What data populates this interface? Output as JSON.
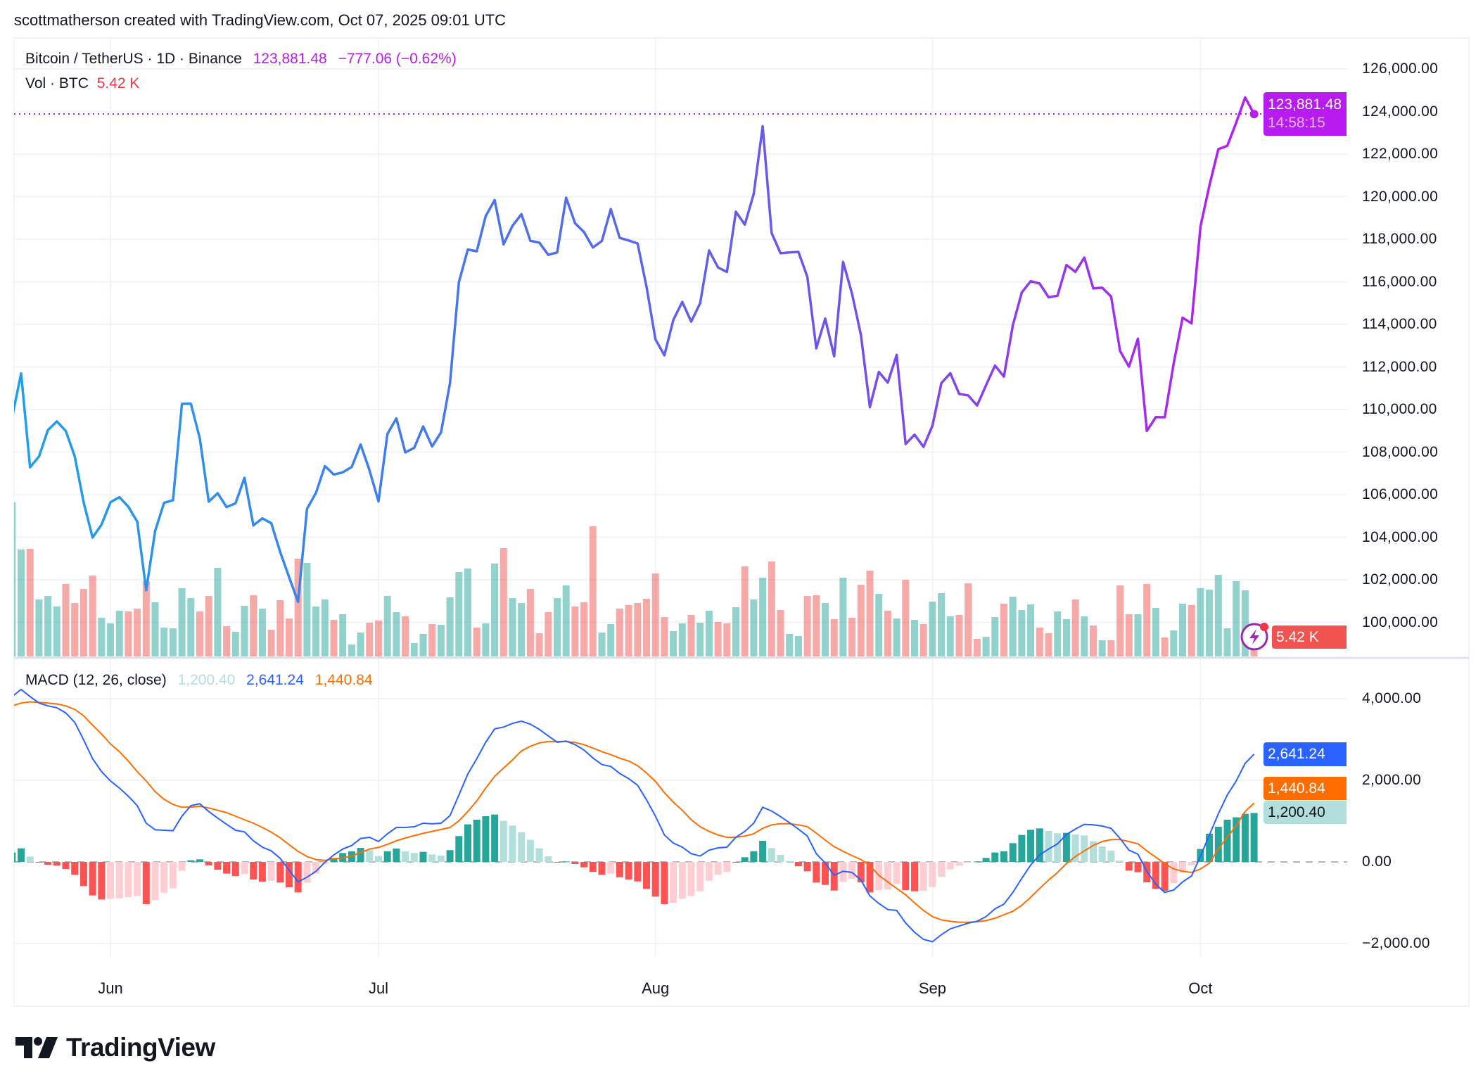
{
  "header": {
    "credit": "scottmatherson created with TradingView.com, Oct 07, 2025 09:01 UTC"
  },
  "legend": {
    "symbol": "Bitcoin / TetherUS · 1D · Binance",
    "price": "123,881.48",
    "change": "−777.06 (−0.62%)",
    "volume_label": "Vol · BTC",
    "volume_value": "5.42 K"
  },
  "macd_legend": {
    "title": "MACD (12, 26, close)",
    "histogram": "1,200.40",
    "macd": "2,641.24",
    "signal": "1,440.84"
  },
  "price_tag": {
    "price": "123,881.48",
    "countdown": "14:58:15"
  },
  "volume_tag": "5.42 K",
  "macd_tags": {
    "macd": "2,641.24",
    "signal": "1,440.84",
    "histogram": "1,200.40"
  },
  "logo": {
    "text": "TradingView"
  },
  "colors": {
    "price_line_start": "#1ea0ea",
    "price_line_end": "#b71cf2",
    "accent_purple": "#b81bf0",
    "volume_up": "#26a69a",
    "volume_down": "#ef5350",
    "macd_line": "#2962ff",
    "signal_line": "#ff6d00",
    "hist_up_strong": "#26a69a",
    "hist_up_weak": "#b2dfdb",
    "hist_down_strong": "#ff5252",
    "hist_down_weak": "#ffcdd2",
    "volume_tag": "#f05350"
  },
  "chart_data": [
    {
      "type": "line",
      "title": "Bitcoin / TetherUS · 1D · Binance",
      "x_start": "2025-05-21",
      "x_end": "2025-10-07",
      "x_interval": "1D",
      "xticks": [
        "Jun",
        "Jul",
        "Aug",
        "Sep",
        "Oct"
      ],
      "yticks": [
        "126,000.00",
        "124,000.00",
        "122,000.00",
        "120,000.00",
        "118,000.00",
        "116,000.00",
        "114,000.00",
        "112,000.00",
        "110,000.00",
        "108,000.00",
        "106,000.00",
        "104,000.00",
        "102,000.00",
        "100,000.00"
      ],
      "ylim": [
        100000,
        126000
      ],
      "grid": true,
      "series": [
        {
          "name": "Bitcoin / TetherUS",
          "values": [
            109643,
            111696,
            107287,
            107791,
            109035,
            109440,
            108995,
            107802,
            105641,
            103985,
            104591,
            105642,
            105882,
            105432,
            104732,
            101509,
            104289,
            105616,
            105735,
            110263,
            110275,
            108645,
            105671,
            106067,
            105414,
            105595,
            106795,
            104551,
            104886,
            104658,
            103298,
            102120,
            100963,
            105333,
            106083,
            107341,
            106947,
            107047,
            107296,
            108356,
            107135,
            105681,
            108849,
            109584,
            107985,
            108198,
            109204,
            108262,
            108922,
            111233,
            115987,
            117516,
            117435,
            119086,
            119842,
            117759,
            118630,
            119177,
            117924,
            117840,
            117265,
            117380,
            119955,
            118755,
            118340,
            117614,
            117919,
            119415,
            118062,
            117939,
            117800,
            115764,
            113297,
            112546,
            114208,
            115055,
            114129,
            114992,
            117472,
            116674,
            116462,
            119294,
            118686,
            120134,
            123306,
            118295,
            117342,
            117380,
            117405,
            116227,
            112872,
            114271,
            112500,
            116935,
            115438,
            113493,
            110111,
            111764,
            111262,
            112567,
            108377,
            108816,
            108246,
            109237,
            111240,
            111706,
            110731,
            110660,
            110187,
            111137,
            112065,
            111546,
            113960,
            115499,
            116030,
            115918,
            115268,
            115349,
            116788,
            116468,
            117137,
            115688,
            115721,
            115306,
            112748,
            112014,
            113328,
            108994,
            109643,
            109635,
            112163,
            114311,
            114048,
            118594,
            120530,
            122232,
            122391,
            123482,
            124658,
            123881.48
          ]
        }
      ],
      "last_value": 123881.48
    },
    {
      "type": "bar",
      "title": "Vol · BTC",
      "unit": "K",
      "series": [
        {
          "name": "Vol · BTC",
          "values": [
            43.8,
            30.4,
            30.6,
            16.2,
            17.2,
            14.2,
            20.6,
            15.2,
            19.2,
            23.0,
            11.0,
            9.4,
            13.0,
            12.8,
            13.6,
            21.4,
            15.4,
            8.2,
            8.0,
            19.4,
            16.6,
            12.8,
            17.2,
            25.2,
            8.6,
            7.0,
            14.4,
            17.4,
            13.6,
            7.6,
            16.0,
            10.8,
            27.8,
            26.6,
            14.2,
            16.2,
            10.4,
            12.0,
            3.4,
            6.8,
            9.6,
            10.2,
            17.2,
            12.6,
            11.4,
            3.8,
            6.4,
            9.2,
            9.0,
            16.8,
            24.0,
            25.0,
            8.2,
            9.4,
            26.4,
            30.8,
            16.6,
            15.2,
            19.2,
            6.6,
            12.6,
            16.6,
            20.2,
            14.2,
            15.4,
            37.0,
            6.8,
            9.2,
            13.6,
            14.6,
            15.2,
            16.4,
            23.6,
            11.2,
            7.2,
            9.4,
            11.8,
            9.6,
            13.0,
            9.8,
            9.4,
            14.0,
            25.6,
            16.2,
            22.4,
            27.0,
            13.2,
            6.4,
            5.8,
            17.2,
            17.4,
            15.2,
            10.6,
            22.4,
            11.0,
            20.4,
            24.4,
            17.8,
            13.0,
            10.8,
            21.8,
            10.4,
            9.2,
            15.6,
            18.0,
            11.4,
            11.8,
            20.8,
            5.0,
            5.6,
            11.2,
            15.0,
            17.0,
            13.2,
            14.8,
            8.2,
            6.6,
            12.8,
            10.6,
            16.2,
            11.4,
            8.8,
            4.6,
            4.6,
            20.2,
            12.0,
            12.0,
            20.6,
            13.8,
            5.4,
            7.4,
            15.0,
            14.6,
            19.4,
            19.0,
            23.2,
            8.0,
            21.4,
            18.8,
            5.42
          ]
        }
      ]
    },
    {
      "type": "line",
      "title": "MACD (12, 26, close)",
      "yticks": [
        "4,000.00",
        "2,000.00",
        "0.00",
        "−2,000.00"
      ],
      "ylim": [
        -2300,
        4300
      ],
      "grid": true,
      "series": [
        {
          "name": "MACD",
          "values": [
            4054,
            4226,
            4054,
            3893,
            3824,
            3778,
            3651,
            3421,
            2990,
            2530,
            2214,
            1984,
            1811,
            1610,
            1380,
            949,
            788,
            776,
            765,
            1121,
            1380,
            1426,
            1236,
            1075,
            920,
            776,
            736,
            518,
            362,
            270,
            86,
            -201,
            -489,
            -374,
            -230,
            -10,
            172,
            316,
            402,
            575,
            604,
            500,
            690,
            845,
            845,
            862,
            949,
            932,
            949,
            1133,
            1639,
            2156,
            2530,
            2933,
            3260,
            3306,
            3393,
            3450,
            3375,
            3249,
            3088,
            2933,
            2961,
            2875,
            2743,
            2547,
            2386,
            2340,
            2168,
            2041,
            1880,
            1520,
            1121,
            661,
            460,
            362,
            201,
            144,
            288,
            345,
            362,
            604,
            748,
            949,
            1340,
            1248,
            1110,
            960,
            805,
            633,
            201,
            -29,
            -328,
            -230,
            -259,
            -443,
            -834,
            -1018,
            -1167,
            -1190,
            -1495,
            -1725,
            -1898,
            -1955,
            -1783,
            -1639,
            -1570,
            -1500,
            -1455,
            -1340,
            -1150,
            -1035,
            -748,
            -403,
            -75,
            172,
            316,
            443,
            673,
            805,
            920,
            909,
            880,
            822,
            575,
            288,
            190,
            -230,
            -546,
            -748,
            -690,
            -489,
            -345,
            144,
            661,
            1179,
            1639,
            1984,
            2415,
            2641.24
          ]
        },
        {
          "name": "Signal",
          "values": [
            3824,
            3893,
            3922,
            3910,
            3893,
            3870,
            3824,
            3738,
            3582,
            3352,
            3134,
            2892,
            2703,
            2473,
            2214,
            1984,
            1725,
            1535,
            1409,
            1340,
            1340,
            1363,
            1322,
            1265,
            1207,
            1121,
            1035,
            949,
            845,
            730,
            592,
            420,
            259,
            132,
            58,
            40,
            75,
            98,
            144,
            230,
            316,
            356,
            431,
            518,
            586,
            644,
            702,
            748,
            794,
            845,
            1006,
            1236,
            1495,
            1811,
            2099,
            2300,
            2501,
            2720,
            2835,
            2915,
            2950,
            2950,
            2950,
            2927,
            2875,
            2789,
            2703,
            2628,
            2542,
            2473,
            2358,
            2180,
            1972,
            1696,
            1466,
            1265,
            1035,
            863,
            748,
            661,
            604,
            604,
            633,
            690,
            822,
            909,
            937,
            937,
            909,
            863,
            707,
            535,
            374,
            259,
            155,
            58,
            -86,
            -328,
            -489,
            -650,
            -805,
            -1006,
            -1190,
            -1340,
            -1420,
            -1455,
            -1478,
            -1478,
            -1466,
            -1438,
            -1380,
            -1294,
            -1208,
            -1064,
            -863,
            -650,
            -443,
            -259,
            -40,
            132,
            270,
            403,
            500,
            546,
            546,
            500,
            443,
            270,
            115,
            -40,
            -173,
            -230,
            -259,
            -173,
            -29,
            316,
            604,
            891,
            1236,
            1440.84
          ]
        }
      ],
      "histogram_last": 1200.4
    }
  ]
}
